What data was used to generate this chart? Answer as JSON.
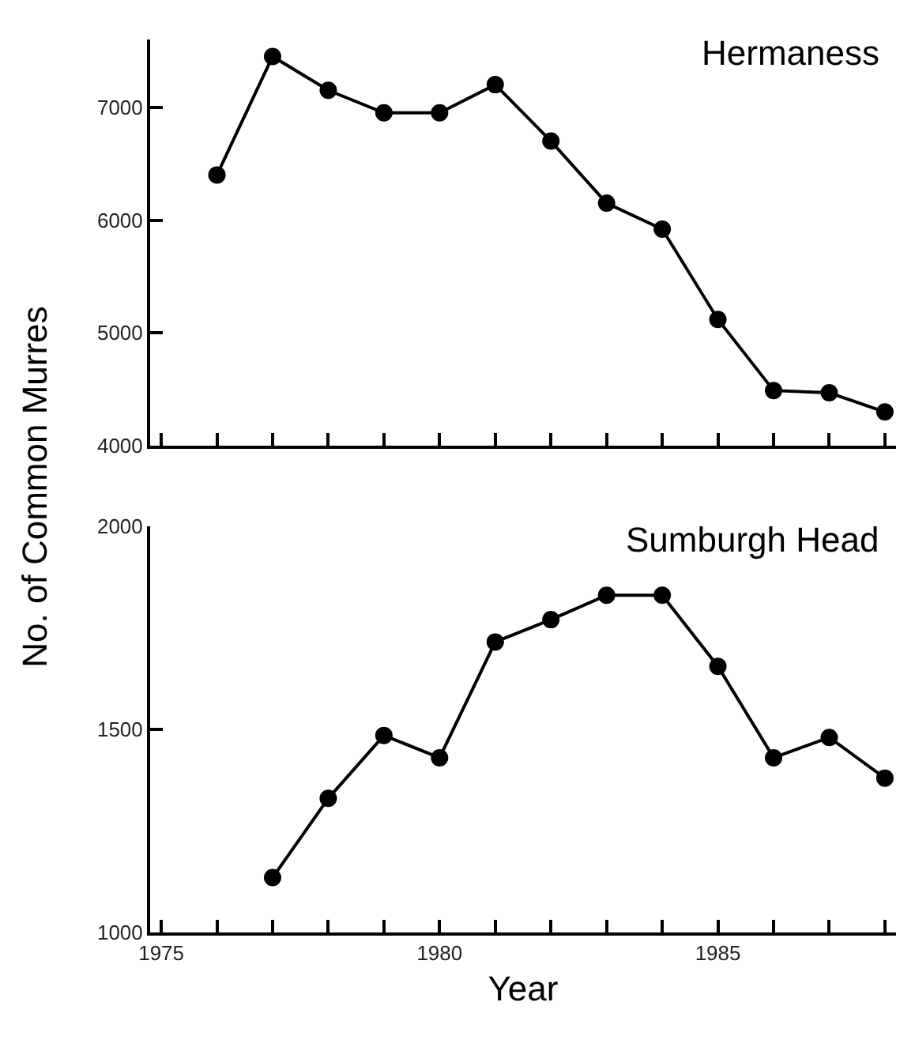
{
  "chart_data": [
    {
      "type": "line",
      "title": "Hermaness",
      "ylabel": "No. of Common Murres",
      "x": [
        1976,
        1977,
        1978,
        1979,
        1980,
        1981,
        1982,
        1983,
        1984,
        1985,
        1986,
        1987,
        1988
      ],
      "series": [
        {
          "color": "#000000",
          "values": [
            6400,
            7450,
            7150,
            6950,
            6950,
            7200,
            6700,
            6150,
            5920,
            5120,
            4490,
            4470,
            4300
          ]
        }
      ],
      "xlim": [
        1974.8,
        1988.2
      ],
      "xticks": [
        {
          "value": 1975,
          "label": null
        },
        {
          "value": 1976,
          "label": null
        },
        {
          "value": 1977,
          "label": null
        },
        {
          "value": 1978,
          "label": null
        },
        {
          "value": 1979,
          "label": null
        },
        {
          "value": 1980,
          "label": null
        },
        {
          "value": 1981,
          "label": null
        },
        {
          "value": 1982,
          "label": null
        },
        {
          "value": 1983,
          "label": null
        },
        {
          "value": 1984,
          "label": null
        },
        {
          "value": 1985,
          "label": null
        },
        {
          "value": 1986,
          "label": null
        },
        {
          "value": 1987,
          "label": null
        },
        {
          "value": 1988,
          "label": null
        }
      ],
      "ylim": [
        4000,
        7600
      ],
      "yticks": [
        4000,
        5000,
        6000,
        7000
      ],
      "tick_labels": "y",
      "marker": "circle",
      "line_style": "solid"
    },
    {
      "type": "line",
      "title": "Sumburgh Head",
      "xlabel": "Year",
      "x": [
        1977,
        1978,
        1979,
        1980,
        1981,
        1982,
        1983,
        1984,
        1985,
        1986,
        1987,
        1988
      ],
      "series": [
        {
          "color": "#000000",
          "values": [
            1135,
            1330,
            1485,
            1430,
            1715,
            1770,
            1830,
            1830,
            1655,
            1430,
            1480,
            1380
          ]
        }
      ],
      "xlim": [
        1974.8,
        1988.2
      ],
      "xticks": [
        1975,
        {
          "value": 1976,
          "label": null
        },
        {
          "value": 1977,
          "label": null
        },
        {
          "value": 1978,
          "label": null
        },
        {
          "value": 1979,
          "label": null
        },
        1980,
        {
          "value": 1981,
          "label": null
        },
        {
          "value": 1982,
          "label": null
        },
        {
          "value": 1983,
          "label": null
        },
        {
          "value": 1984,
          "label": null
        },
        1985,
        {
          "value": 1986,
          "label": null
        },
        {
          "value": 1987,
          "label": null
        },
        {
          "value": 1988,
          "label": null
        }
      ],
      "ylim": [
        1000,
        2000
      ],
      "yticks": [
        1000,
        1500,
        2000
      ],
      "marker": "circle",
      "line_style": "solid"
    }
  ]
}
